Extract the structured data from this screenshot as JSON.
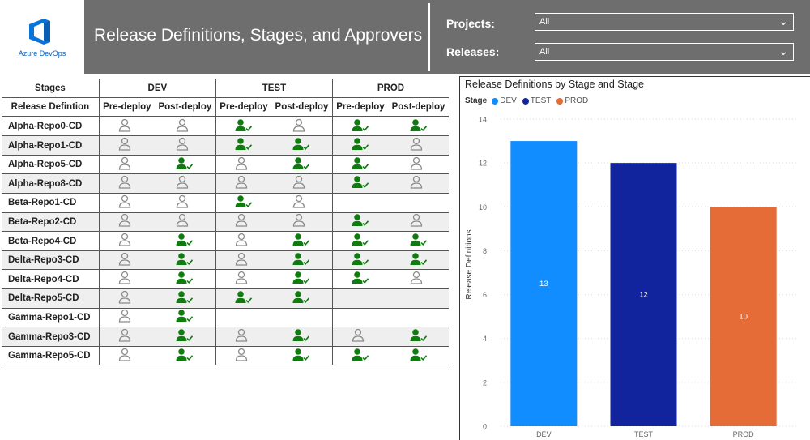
{
  "header": {
    "logo_text": "Azure DevOps",
    "title": "Release Definitions, Stages, and Approvers",
    "filters": [
      {
        "label": "Projects:",
        "value": "All"
      },
      {
        "label": "Releases:",
        "value": "All"
      }
    ]
  },
  "table": {
    "corner_top": "Stages",
    "corner_bottom": "Release Defintion",
    "stages": [
      "DEV",
      "TEST",
      "PROD"
    ],
    "sub_columns": [
      "Pre-deploy",
      "Post-deploy",
      "Pre-deploy",
      "Post-deploy",
      "Pre-deploy",
      "Post-deploy"
    ],
    "rows": [
      {
        "name": "Alpha-Repo0-CD",
        "cells": [
          "n",
          "n",
          "a",
          "n",
          "a",
          "a"
        ]
      },
      {
        "name": "Alpha-Repo1-CD",
        "cells": [
          "n",
          "n",
          "a",
          "a",
          "a",
          "n"
        ]
      },
      {
        "name": "Alpha-Repo5-CD",
        "cells": [
          "n",
          "a",
          "n",
          "a",
          "a",
          "n"
        ]
      },
      {
        "name": "Alpha-Repo8-CD",
        "cells": [
          "n",
          "n",
          "n",
          "n",
          "a",
          "n"
        ]
      },
      {
        "name": "Beta-Repo1-CD",
        "cells": [
          "n",
          "n",
          "a",
          "n",
          "",
          ""
        ]
      },
      {
        "name": "Beta-Repo2-CD",
        "cells": [
          "n",
          "n",
          "n",
          "n",
          "a",
          "n"
        ]
      },
      {
        "name": "Beta-Repo4-CD",
        "cells": [
          "n",
          "a",
          "n",
          "a",
          "a",
          "a"
        ]
      },
      {
        "name": "Delta-Repo3-CD",
        "cells": [
          "n",
          "a",
          "n",
          "a",
          "a",
          "a"
        ]
      },
      {
        "name": "Delta-Repo4-CD",
        "cells": [
          "n",
          "a",
          "n",
          "a",
          "a",
          "n"
        ]
      },
      {
        "name": "Delta-Repo5-CD",
        "cells": [
          "n",
          "a",
          "a",
          "a",
          "",
          ""
        ]
      },
      {
        "name": "Gamma-Repo1-CD",
        "cells": [
          "n",
          "a",
          "",
          "",
          "",
          ""
        ]
      },
      {
        "name": "Gamma-Repo3-CD",
        "cells": [
          "n",
          "a",
          "n",
          "a",
          "n",
          "a"
        ]
      },
      {
        "name": "Gamma-Repo5-CD",
        "cells": [
          "n",
          "a",
          "n",
          "a",
          "a",
          "a"
        ]
      }
    ],
    "icons": {
      "n": "person-outline-icon",
      "a": "person-approved-check-icon"
    },
    "colors": {
      "approved": "#107c10",
      "none": "#8a8a8a"
    }
  },
  "chart_data": {
    "type": "bar",
    "title": "Release Definitions by Stage and Stage",
    "legend_title": "Stage",
    "categories": [
      "DEV",
      "TEST",
      "PROD"
    ],
    "values": [
      13,
      12,
      10
    ],
    "colors": [
      "#118dff",
      "#12239e",
      "#e66c37"
    ],
    "ylabel": "Release Definitions",
    "xlabel": "",
    "ylim": [
      0,
      14
    ],
    "yticks": [
      0,
      2,
      4,
      6,
      8,
      10,
      12,
      14
    ],
    "data_labels": true,
    "legend_position": "top-left",
    "grid": true
  }
}
